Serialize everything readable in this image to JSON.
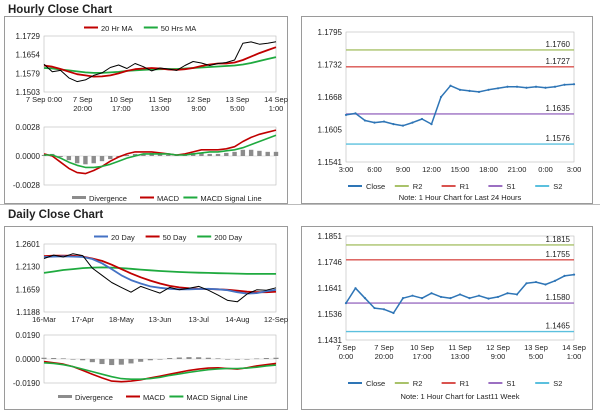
{
  "titles": {
    "hourly": "Hourly Close Chart",
    "daily": "Daily Close Chart"
  },
  "colors": {
    "price": "#000000",
    "ma_short": "#c00000",
    "ma_long": "#1faa3f",
    "ma_200": "#1faa3f",
    "ma_20": "#4472c4",
    "ma_50": "#c00000",
    "close": "#2e75b6",
    "r2": "#a9c26a",
    "r1": "#d9534f",
    "s1": "#9b6fc2",
    "s2": "#5bc0de",
    "divergence": "#8c8c8c",
    "macd": "#c00000",
    "signal": "#1faa3f"
  },
  "chart_data": [
    {
      "id": "hourly-price",
      "type": "line",
      "title": "Hourly Close Chart",
      "y_ticks": [
        "1.1729",
        "1.1654",
        "1.1579",
        "1.1503"
      ],
      "ylim": [
        1.1503,
        1.1729
      ],
      "x_ticks": [
        [
          "7 Sep 0:00",
          ""
        ],
        [
          "7 Sep",
          "20:00"
        ],
        [
          "10 Sep",
          "17:00"
        ],
        [
          "11 Sep",
          "13:00"
        ],
        [
          "12 Sep",
          "9:00"
        ],
        [
          "13 Sep",
          "5:00"
        ],
        [
          "14 Sep",
          "1:00"
        ]
      ],
      "legend": [
        "20 Hr MA",
        "50 Hrs MA"
      ],
      "series": [
        {
          "name": "20 Hr MA",
          "color_key": "ma_short",
          "values": [
            1.161,
            1.1605,
            1.1596,
            1.1585,
            1.1575,
            1.157,
            1.1565,
            1.1566,
            1.157,
            1.1578,
            1.1588,
            1.1595,
            1.1598,
            1.16,
            1.1598,
            1.1594,
            1.1592,
            1.1595,
            1.16,
            1.1608,
            1.1614,
            1.1618,
            1.1618,
            1.1622,
            1.1632,
            1.1646,
            1.166,
            1.1672,
            1.1684
          ]
        },
        {
          "name": "50 Hrs MA",
          "color_key": "ma_long",
          "values": [
            1.16,
            1.1598,
            1.1594,
            1.159,
            1.1586,
            1.1582,
            1.158,
            1.158,
            1.1582,
            1.1584,
            1.1588,
            1.159,
            1.1592,
            1.1594,
            1.1595,
            1.1596,
            1.1596,
            1.1598,
            1.16,
            1.1602,
            1.1604,
            1.1606,
            1.1608,
            1.161,
            1.1614,
            1.162,
            1.1628,
            1.1636,
            1.1644
          ]
        },
        {
          "name": "Close",
          "color_key": "price",
          "values": [
            1.1615,
            1.1585,
            1.159,
            1.156,
            1.1545,
            1.1552,
            1.157,
            1.158,
            1.1602,
            1.1612,
            1.1598,
            1.1618,
            1.1605,
            1.1588,
            1.16,
            1.1596,
            1.159,
            1.161,
            1.1626,
            1.162,
            1.161,
            1.1618,
            1.1622,
            1.1632,
            1.17,
            1.1705,
            1.1696,
            1.17,
            1.1706
          ]
        }
      ]
    },
    {
      "id": "hourly-macd",
      "type": "line",
      "y_ticks": [
        "0.0028",
        "0.0000",
        "-0.0028"
      ],
      "ylim": [
        -0.0028,
        0.0028
      ],
      "legend": [
        "Divergence",
        "MACD",
        "MACD Signal Line"
      ],
      "divergence": [
        0.0001,
        0.0002,
        -0.0001,
        -0.0004,
        -0.0007,
        -0.0008,
        -0.0007,
        -0.0005,
        -0.0003,
        -0.0001,
        0.0001,
        0.0002,
        0.0002,
        0.0003,
        0.0002,
        0.0001,
        0.0001,
        0.0002,
        0.0003,
        0.0003,
        0.0002,
        0.0002,
        0.0003,
        0.0004,
        0.0006,
        0.0006,
        0.0005,
        0.0004,
        0.0004
      ],
      "series": [
        {
          "name": "MACD",
          "color_key": "macd",
          "values": [
            0.0002,
            0.0,
            -0.0006,
            -0.0012,
            -0.0016,
            -0.0017,
            -0.0014,
            -0.001,
            -0.0005,
            -0.0001,
            0.0002,
            0.0004,
            0.0004,
            0.0004,
            0.0003,
            0.0002,
            0.0001,
            0.0002,
            0.0004,
            0.0006,
            0.0006,
            0.0006,
            0.0007,
            0.0009,
            0.0014,
            0.0018,
            0.0021,
            0.0023,
            0.0025
          ]
        },
        {
          "name": "MACD Signal Line",
          "color_key": "signal",
          "values": [
            0.0001,
            0.0001,
            -0.0002,
            -0.0006,
            -0.0009,
            -0.0011,
            -0.0011,
            -0.001,
            -0.0008,
            -0.0005,
            -0.0002,
            0.0,
            0.0002,
            0.0002,
            0.0002,
            0.0002,
            0.0001,
            0.0001,
            0.0002,
            0.0003,
            0.0004,
            0.0004,
            0.0005,
            0.0006,
            0.0008,
            0.0011,
            0.0014,
            0.0017,
            0.002
          ]
        }
      ]
    },
    {
      "id": "hourly-pivot",
      "type": "line",
      "y_ticks": [
        "1.1795",
        "1.1732",
        "1.1668",
        "1.1605",
        "1.1541"
      ],
      "ylim": [
        1.1541,
        1.1795
      ],
      "x_ticks": [
        "3:00",
        "6:00",
        "9:00",
        "12:00",
        "15:00",
        "18:00",
        "21:00",
        "0:00",
        "3:00"
      ],
      "legend": [
        "Close",
        "R2",
        "R1",
        "S1",
        "S2"
      ],
      "note": "Note: 1 Hour Chart for Last 24 Hours",
      "levels": [
        {
          "name": "R2",
          "color_key": "r2",
          "value": 1.176,
          "label": "1.1760"
        },
        {
          "name": "R1",
          "color_key": "r1",
          "value": 1.1727,
          "label": "1.1727"
        },
        {
          "name": "S1",
          "color_key": "s1",
          "value": 1.1635,
          "label": "1.1635"
        },
        {
          "name": "S2",
          "color_key": "s2",
          "value": 1.1576,
          "label": "1.1576"
        }
      ],
      "series": [
        {
          "name": "Close",
          "color_key": "close",
          "values": [
            1.1633,
            1.1636,
            1.1622,
            1.1618,
            1.162,
            1.1615,
            1.1612,
            1.1618,
            1.1625,
            1.1615,
            1.1668,
            1.169,
            1.1682,
            1.168,
            1.1678,
            1.1682,
            1.1685,
            1.1688,
            1.1688,
            1.1686,
            1.1688,
            1.1686,
            1.1688,
            1.1692,
            1.1693
          ]
        }
      ]
    },
    {
      "id": "daily-price",
      "type": "line",
      "title": "Daily Close Chart",
      "y_ticks": [
        "1.2601",
        "1.2130",
        "1.1659",
        "1.1188"
      ],
      "ylim": [
        1.1188,
        1.2601
      ],
      "x_ticks": [
        "16-Mar",
        "17-Apr",
        "18-May",
        "13-Jun",
        "13-Jul",
        "14-Aug",
        "12-Sep"
      ],
      "legend": [
        "20 Day",
        "50 Day",
        "200 Day"
      ],
      "series": [
        {
          "name": "20 Day",
          "color_key": "ma_20",
          "values": [
            1.233,
            1.234,
            1.2345,
            1.234,
            1.233,
            1.229,
            1.22,
            1.208,
            1.195,
            1.185,
            1.178,
            1.172,
            1.169,
            1.167,
            1.166,
            1.166,
            1.1665,
            1.167,
            1.166,
            1.164,
            1.16,
            1.157,
            1.158,
            1.162,
            1.165
          ]
        },
        {
          "name": "50 Day",
          "color_key": "ma_50",
          "values": [
            1.235,
            1.236,
            1.236,
            1.2355,
            1.234,
            1.23,
            1.225,
            1.217,
            1.208,
            1.199,
            1.191,
            1.184,
            1.178,
            1.173,
            1.17,
            1.168,
            1.167,
            1.1665,
            1.166,
            1.165,
            1.163,
            1.161,
            1.16,
            1.16,
            1.161
          ]
        },
        {
          "name": "200 Day",
          "color_key": "ma_200",
          "values": [
            1.2,
            1.203,
            1.206,
            1.208,
            1.21,
            1.211,
            1.2115,
            1.211,
            1.21,
            1.2085,
            1.207,
            1.2055,
            1.204,
            1.203,
            1.202,
            1.201,
            1.2005,
            1.2,
            1.1995,
            1.199,
            1.1985,
            1.198,
            1.198,
            1.198,
            1.198
          ]
        },
        {
          "name": "Close",
          "color_key": "price",
          "values": [
            1.23,
            1.237,
            1.233,
            1.24,
            1.236,
            1.21,
            1.195,
            1.18,
            1.17,
            1.16,
            1.172,
            1.165,
            1.158,
            1.17,
            1.165,
            1.168,
            1.172,
            1.164,
            1.154,
            1.143,
            1.14,
            1.156,
            1.165,
            1.164,
            1.169
          ]
        }
      ]
    },
    {
      "id": "daily-macd",
      "type": "line",
      "y_ticks": [
        "0.0190",
        "0.0000",
        "-0.0190"
      ],
      "ylim": [
        -0.019,
        0.019
      ],
      "legend": [
        "Divergence",
        "MACD",
        "MACD Signal Line"
      ],
      "divergence": [
        0.001,
        0.0008,
        0.0005,
        0.0,
        -0.001,
        -0.0025,
        -0.004,
        -0.0048,
        -0.0045,
        -0.0035,
        -0.0022,
        -0.001,
        0.0,
        0.0008,
        0.0012,
        0.0015,
        0.0014,
        0.001,
        0.0005,
        0.0,
        -0.0005,
        -0.0002,
        0.0004,
        0.0008,
        0.001
      ],
      "series": [
        {
          "name": "MACD",
          "color_key": "macd",
          "values": [
            -0.002,
            -0.003,
            -0.004,
            -0.006,
            -0.009,
            -0.012,
            -0.015,
            -0.0175,
            -0.018,
            -0.0175,
            -0.0165,
            -0.015,
            -0.0135,
            -0.012,
            -0.0105,
            -0.009,
            -0.008,
            -0.0072,
            -0.007,
            -0.0075,
            -0.008,
            -0.007,
            -0.0055,
            -0.0045,
            -0.0035
          ]
        },
        {
          "name": "MACD Signal Line",
          "color_key": "signal",
          "values": [
            -0.003,
            -0.0035,
            -0.0045,
            -0.006,
            -0.008,
            -0.01,
            -0.012,
            -0.014,
            -0.0155,
            -0.016,
            -0.016,
            -0.0155,
            -0.0145,
            -0.013,
            -0.0118,
            -0.0105,
            -0.0095,
            -0.0085,
            -0.0078,
            -0.0075,
            -0.0075,
            -0.0072,
            -0.0065,
            -0.0055,
            -0.0048
          ]
        }
      ]
    },
    {
      "id": "daily-pivot",
      "type": "line",
      "y_ticks": [
        "1.1851",
        "1.1746",
        "1.1641",
        "1.1536",
        "1.1431"
      ],
      "ylim": [
        1.1431,
        1.1851
      ],
      "x_ticks": [
        [
          "7 Sep",
          "0:00"
        ],
        [
          "7 Sep",
          "20:00"
        ],
        [
          "10 Sep",
          "17:00"
        ],
        [
          "11 Sep",
          "13:00"
        ],
        [
          "12 Sep",
          "9:00"
        ],
        [
          "13 Sep",
          "5:00"
        ],
        [
          "14 Sep",
          "1:00"
        ]
      ],
      "legend": [
        "Close",
        "R2",
        "R1",
        "S1",
        "S2"
      ],
      "note": "Note: 1 Hour Chart for Last11 Week",
      "levels": [
        {
          "name": "R2",
          "color_key": "r2",
          "value": 1.1815,
          "label": "1.1815"
        },
        {
          "name": "R1",
          "color_key": "r1",
          "value": 1.1755,
          "label": "1.1755"
        },
        {
          "name": "S1",
          "color_key": "s1",
          "value": 1.158,
          "label": "1.1580"
        },
        {
          "name": "S2",
          "color_key": "s2",
          "value": 1.1465,
          "label": "1.1465"
        }
      ],
      "series": [
        {
          "name": "Close",
          "color_key": "close",
          "values": [
            1.158,
            1.164,
            1.16,
            1.156,
            1.1555,
            1.154,
            1.16,
            1.161,
            1.16,
            1.162,
            1.1605,
            1.16,
            1.1615,
            1.16,
            1.161,
            1.1598,
            1.1605,
            1.162,
            1.1615,
            1.166,
            1.1665,
            1.1655,
            1.167,
            1.169,
            1.1695
          ]
        }
      ]
    }
  ]
}
